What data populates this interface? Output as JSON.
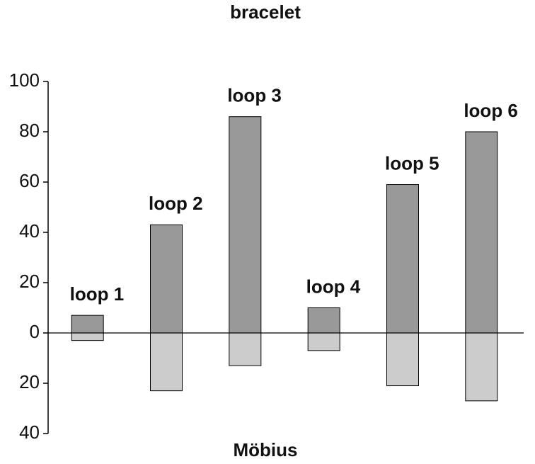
{
  "chart_data": {
    "type": "bar",
    "categories": [
      "loop 1",
      "loop 2",
      "loop 3",
      "loop 4",
      "loop 5",
      "loop 6"
    ],
    "series": [
      {
        "name": "bracelet",
        "color": "#999999",
        "values": [
          7,
          43,
          86,
          10,
          59,
          80
        ]
      },
      {
        "name": "Möbius",
        "color": "#cccccc",
        "values": [
          -3,
          -23,
          -13,
          -7,
          -21,
          -27
        ]
      }
    ],
    "ylim": [
      -40,
      100
    ],
    "yticks": [
      {
        "value": -40,
        "label": "40"
      },
      {
        "value": -20,
        "label": "20"
      },
      0,
      20,
      40,
      60,
      80,
      100
    ],
    "grid": false
  }
}
